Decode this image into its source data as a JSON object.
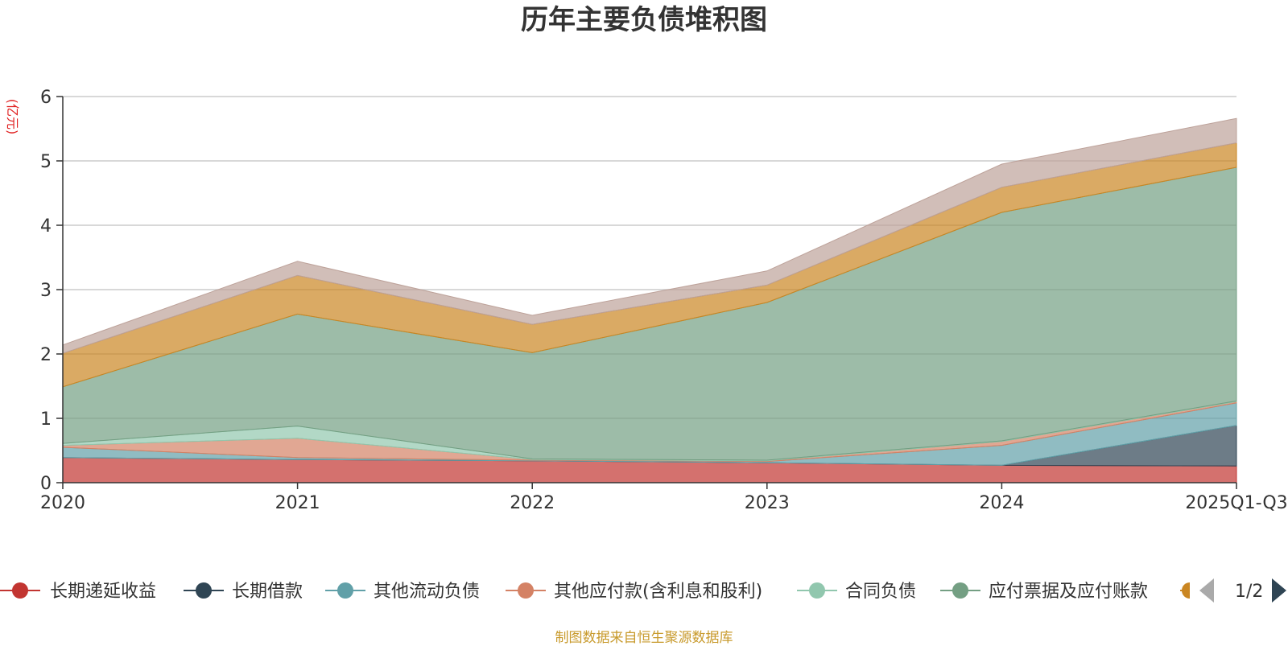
{
  "chart_data": {
    "type": "area",
    "stacked": true,
    "title": "历年主要负债堆积图",
    "unit_label": "(亿元)",
    "categories": [
      "2020",
      "2021",
      "2022",
      "2023",
      "2024",
      "2025Q1-Q3"
    ],
    "ylim": [
      0,
      6
    ],
    "yticks": [
      "0",
      "1",
      "2",
      "3",
      "4",
      "5",
      "6"
    ],
    "series": [
      {
        "name": "长期递延收益",
        "color": "#c23531",
        "values": [
          0.39,
          0.36,
          0.34,
          0.31,
          0.27,
          0.26
        ]
      },
      {
        "name": "长期借款",
        "color": "#2f4554",
        "values": [
          0,
          0,
          0,
          0,
          0,
          0.63
        ]
      },
      {
        "name": "其他流动负债",
        "color": "#61a0a8",
        "values": [
          0.16,
          0.03,
          0.01,
          0.02,
          0.31,
          0.35
        ]
      },
      {
        "name": "其他应付款(含利息和股利)",
        "color": "#d48265",
        "values": [
          0.03,
          0.3,
          0.01,
          0.01,
          0.06,
          0.02
        ]
      },
      {
        "name": "合同负债",
        "color": "#91c7ae",
        "values": [
          0.03,
          0.19,
          0.01,
          0.01,
          0.01,
          0.01
        ]
      },
      {
        "name": "应付票据及应付账款",
        "color": "#749f83",
        "values": [
          0.88,
          1.74,
          1.65,
          2.45,
          3.55,
          3.63
        ]
      },
      {
        "name": "",
        "color": "#ca8622",
        "values": [
          0.52,
          0.6,
          0.44,
          0.27,
          0.39,
          0.38
        ]
      },
      {
        "name": "",
        "color": "#bda29a",
        "values": [
          0.13,
          0.22,
          0.14,
          0.22,
          0.36,
          0.38
        ]
      }
    ],
    "legend_page": "1/2",
    "legend_visible_count": 6
  },
  "source_note": "制图数据来自恒生聚源数据库"
}
